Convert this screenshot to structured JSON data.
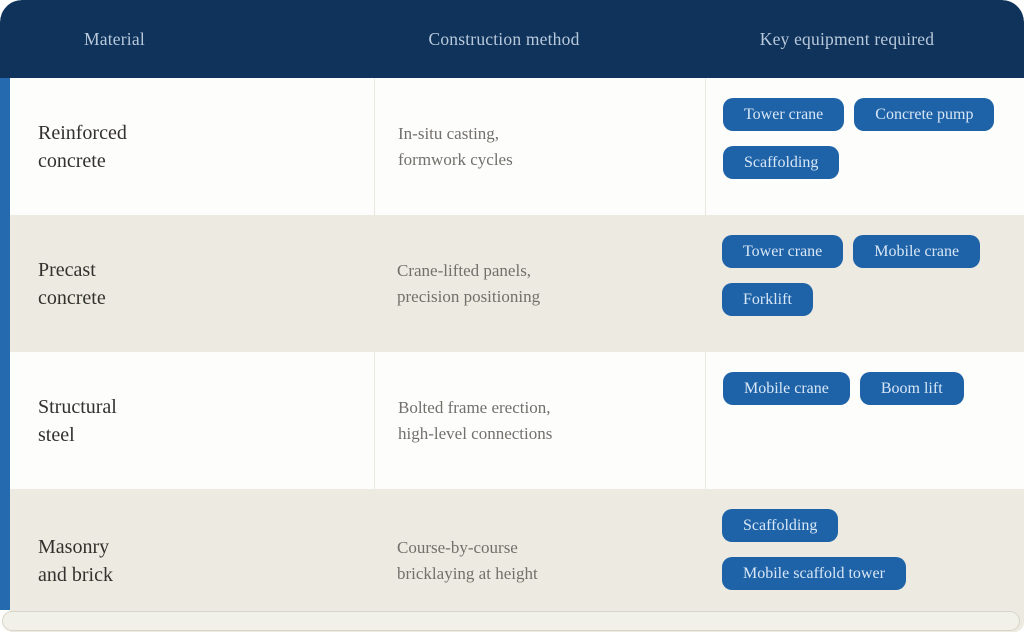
{
  "table": {
    "columns": [
      {
        "label": "Material"
      },
      {
        "label": "Construction method"
      },
      {
        "label": "Key equipment required"
      }
    ],
    "rows": [
      {
        "material": "Reinforced\nconcrete",
        "method": "In-situ casting,\nformwork cycles",
        "equipment": [
          "Tower crane",
          "Concrete pump",
          "Scaffolding"
        ]
      },
      {
        "material": "Precast\nconcrete",
        "method": "Crane-lifted panels,\nprecision positioning",
        "equipment": [
          "Tower crane",
          "Mobile crane",
          "Forklift"
        ]
      },
      {
        "material": "Structural\nsteel",
        "method": "Bolted frame erection,\nhigh-level connections",
        "equipment": [
          "Mobile crane",
          "Boom lift"
        ]
      },
      {
        "material": "Masonry\nand brick",
        "method": "Course-by-course\nbricklaying at height",
        "equipment": [
          "Scaffolding",
          "Mobile scaffold tower"
        ]
      }
    ]
  },
  "colors": {
    "header_bg": "#0f335a",
    "header_text": "#b9c9dc",
    "accent_strip": "#2569ae",
    "pill_bg": "#1e62a8",
    "pill_text": "#d8e7f5",
    "row_white": "#fdfdfc",
    "row_beige": "#edebe1",
    "material_text": "#33312e",
    "method_text": "#72706b"
  }
}
